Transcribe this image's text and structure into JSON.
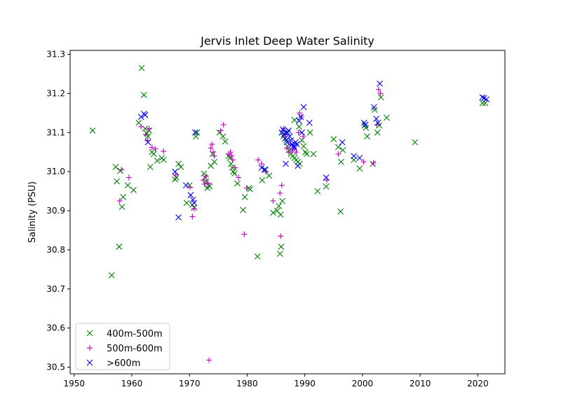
{
  "chart_data": {
    "type": "scatter",
    "title": "Jervis Inlet Deep Water Salinity",
    "xlabel": "",
    "ylabel": "Salinity (PSU)",
    "xlim": [
      1949.3,
      2024.7
    ],
    "ylim": [
      30.483,
      31.31
    ],
    "xticks": [
      1950,
      1960,
      1970,
      1980,
      1990,
      2000,
      2010,
      2020
    ],
    "yticks": [
      30.5,
      30.6,
      30.7,
      30.8,
      30.9,
      31.0,
      31.1,
      31.2,
      31.3
    ],
    "grid": false,
    "legend_position": "lower-left",
    "series": [
      {
        "name": "400m-500m",
        "marker": "x",
        "color": "#008000",
        "points": [
          [
            1953.2,
            31.105
          ],
          [
            1956.5,
            30.735
          ],
          [
            1957.2,
            31.012
          ],
          [
            1957.4,
            30.975
          ],
          [
            1957.8,
            30.808
          ],
          [
            1958.0,
            31.002
          ],
          [
            1958.3,
            30.91
          ],
          [
            1958.5,
            30.935
          ],
          [
            1959.3,
            30.965
          ],
          [
            1960.3,
            30.953
          ],
          [
            1961.2,
            31.125
          ],
          [
            1961.7,
            31.265
          ],
          [
            1962.1,
            31.196
          ],
          [
            1962.3,
            31.11
          ],
          [
            1962.6,
            31.098
          ],
          [
            1962.8,
            31.09
          ],
          [
            1963.0,
            31.105
          ],
          [
            1963.2,
            31.012
          ],
          [
            1963.5,
            31.05
          ],
          [
            1963.8,
            31.045
          ],
          [
            1964.4,
            31.028
          ],
          [
            1965.2,
            31.035
          ],
          [
            1965.5,
            31.03
          ],
          [
            1967.5,
            30.98
          ],
          [
            1967.7,
            30.985
          ],
          [
            1968.1,
            31.02
          ],
          [
            1968.5,
            31.012
          ],
          [
            1969.5,
            30.92
          ],
          [
            1970.0,
            30.965
          ],
          [
            1970.5,
            30.915
          ],
          [
            1970.8,
            30.908
          ],
          [
            1971.1,
            31.09
          ],
          [
            1971.3,
            31.1
          ],
          [
            1972.5,
            30.995
          ],
          [
            1972.7,
            30.985
          ],
          [
            1972.9,
            30.975
          ],
          [
            1973.1,
            30.958
          ],
          [
            1973.3,
            30.965
          ],
          [
            1973.5,
            30.962
          ],
          [
            1973.7,
            31.015
          ],
          [
            1974.0,
            31.045
          ],
          [
            1974.3,
            31.025
          ],
          [
            1975.2,
            31.1
          ],
          [
            1975.8,
            31.09
          ],
          [
            1976.2,
            31.077
          ],
          [
            1976.8,
            31.04
          ],
          [
            1977.0,
            31.035
          ],
          [
            1977.2,
            31.02
          ],
          [
            1977.4,
            31.01
          ],
          [
            1977.6,
            31.0
          ],
          [
            1977.8,
            30.995
          ],
          [
            1978.3,
            30.97
          ],
          [
            1979.3,
            30.902
          ],
          [
            1979.6,
            30.935
          ],
          [
            1980.3,
            30.958
          ],
          [
            1980.5,
            30.955
          ],
          [
            1981.8,
            30.783
          ],
          [
            1982.6,
            30.978
          ],
          [
            1983.2,
            31.005
          ],
          [
            1983.8,
            30.99
          ],
          [
            1984.5,
            30.895
          ],
          [
            1985.2,
            30.9
          ],
          [
            1985.5,
            30.912
          ],
          [
            1985.7,
            30.79
          ],
          [
            1985.8,
            30.89
          ],
          [
            1985.9,
            30.808
          ],
          [
            1986.1,
            30.925
          ],
          [
            1986.3,
            31.09
          ],
          [
            1986.5,
            31.1
          ],
          [
            1986.8,
            31.08
          ],
          [
            1987.0,
            31.065
          ],
          [
            1987.3,
            31.055
          ],
          [
            1987.6,
            31.045
          ],
          [
            1987.9,
            31.04
          ],
          [
            1988.2,
            31.035
          ],
          [
            1988.5,
            31.03
          ],
          [
            1988.8,
            31.025
          ],
          [
            1989.1,
            31.02
          ],
          [
            1988.2,
            31.132
          ],
          [
            1989.0,
            31.115
          ],
          [
            1989.5,
            31.08
          ],
          [
            1989.8,
            31.065
          ],
          [
            1990.1,
            31.05
          ],
          [
            1990.3,
            31.045
          ],
          [
            1990.9,
            31.1
          ],
          [
            1991.5,
            31.045
          ],
          [
            1992.2,
            30.95
          ],
          [
            1993.7,
            30.962
          ],
          [
            1995.0,
            31.083
          ],
          [
            1995.8,
            31.063
          ],
          [
            1996.2,
            30.898
          ],
          [
            1996.3,
            31.025
          ],
          [
            1996.6,
            31.055
          ],
          [
            1998.5,
            31.03
          ],
          [
            1999.5,
            31.008
          ],
          [
            2000.4,
            31.118
          ],
          [
            2000.6,
            31.112
          ],
          [
            2000.8,
            31.09
          ],
          [
            2001.8,
            31.02
          ],
          [
            2002.1,
            31.158
          ],
          [
            2002.6,
            31.1
          ],
          [
            2002.9,
            31.118
          ],
          [
            2003.2,
            31.19
          ],
          [
            2004.2,
            31.138
          ],
          [
            2009.1,
            31.075
          ],
          [
            2020.8,
            31.175
          ],
          [
            2021.3,
            31.175
          ]
        ]
      },
      {
        "name": "500m-600m",
        "marker": "+",
        "color": "#bf00bf",
        "points": [
          [
            1957.9,
            30.925
          ],
          [
            1958.2,
            31.005
          ],
          [
            1959.5,
            30.985
          ],
          [
            1961.6,
            31.115
          ],
          [
            1962.4,
            31.095
          ],
          [
            1962.7,
            31.08
          ],
          [
            1963.0,
            31.11
          ],
          [
            1963.5,
            31.062
          ],
          [
            1964.1,
            31.058
          ],
          [
            1965.5,
            31.052
          ],
          [
            1967.6,
            30.992
          ],
          [
            1970.1,
            30.96
          ],
          [
            1970.5,
            30.885
          ],
          [
            1970.8,
            30.905
          ],
          [
            1972.4,
            30.978
          ],
          [
            1972.6,
            30.968
          ],
          [
            1972.9,
            30.988
          ],
          [
            1973.2,
            30.97
          ],
          [
            1973.4,
            30.518
          ],
          [
            1973.7,
            31.06
          ],
          [
            1973.9,
            31.07
          ],
          [
            1974.1,
            31.05
          ],
          [
            1974.3,
            31.04
          ],
          [
            1975.4,
            31.105
          ],
          [
            1975.9,
            31.12
          ],
          [
            1976.8,
            31.045
          ],
          [
            1977.1,
            31.05
          ],
          [
            1977.3,
            31.04
          ],
          [
            1977.5,
            31.03
          ],
          [
            1977.9,
            31.01
          ],
          [
            1978.5,
            30.985
          ],
          [
            1979.5,
            30.84
          ],
          [
            1979.9,
            30.958
          ],
          [
            1981.9,
            31.03
          ],
          [
            1982.5,
            31.02
          ],
          [
            1983.2,
            31.0
          ],
          [
            1984.5,
            30.925
          ],
          [
            1985.7,
            30.945
          ],
          [
            1985.8,
            30.835
          ],
          [
            1986.0,
            30.965
          ],
          [
            1986.3,
            31.11
          ],
          [
            1986.6,
            31.095
          ],
          [
            1986.9,
            31.06
          ],
          [
            1987.2,
            31.05
          ],
          [
            1987.5,
            31.07
          ],
          [
            1987.8,
            31.055
          ],
          [
            1988.2,
            31.06
          ],
          [
            1988.5,
            31.05
          ],
          [
            1988.9,
            31.1
          ],
          [
            1989.1,
            31.15
          ],
          [
            1989.4,
            31.14
          ],
          [
            1989.7,
            31.09
          ],
          [
            1993.8,
            30.978
          ],
          [
            1995.8,
            31.045
          ],
          [
            2000.2,
            31.025
          ],
          [
            2001.9,
            31.022
          ],
          [
            2002.5,
            31.12
          ],
          [
            2002.8,
            31.21
          ],
          [
            2003.1,
            31.2
          ]
        ]
      },
      {
        "name": ">600m",
        "marker": "x",
        "color": "#0000ff",
        "points": [
          [
            1961.6,
            31.14
          ],
          [
            1962.1,
            31.148
          ],
          [
            1962.3,
            31.145
          ],
          [
            1962.8,
            31.075
          ],
          [
            1967.5,
            31.0
          ],
          [
            1968.1,
            30.883
          ],
          [
            1969.4,
            30.965
          ],
          [
            1970.2,
            30.94
          ],
          [
            1970.6,
            30.928
          ],
          [
            1970.8,
            30.92
          ],
          [
            1971.0,
            31.1
          ],
          [
            1982.5,
            31.01
          ],
          [
            1983.0,
            31.005
          ],
          [
            1986.0,
            31.1
          ],
          [
            1986.2,
            31.108
          ],
          [
            1986.4,
            31.095
          ],
          [
            1986.6,
            31.085
          ],
          [
            1986.7,
            31.02
          ],
          [
            1986.9,
            31.075
          ],
          [
            1987.0,
            31.1
          ],
          [
            1987.2,
            31.105
          ],
          [
            1987.4,
            31.09
          ],
          [
            1987.6,
            31.08
          ],
          [
            1987.8,
            31.07
          ],
          [
            1988.0,
            31.065
          ],
          [
            1988.2,
            31.06
          ],
          [
            1988.4,
            31.075
          ],
          [
            1988.6,
            31.07
          ],
          [
            1988.8,
            31.015
          ],
          [
            1989.0,
            31.13
          ],
          [
            1989.3,
            31.14
          ],
          [
            1989.5,
            31.1
          ],
          [
            1989.8,
            31.165
          ],
          [
            1990.8,
            31.125
          ],
          [
            1993.7,
            30.985
          ],
          [
            1996.5,
            31.075
          ],
          [
            1998.5,
            31.04
          ],
          [
            1999.5,
            31.035
          ],
          [
            2000.3,
            31.125
          ],
          [
            2000.5,
            31.12
          ],
          [
            2002.0,
            31.165
          ],
          [
            2002.4,
            31.135
          ],
          [
            2002.7,
            31.125
          ],
          [
            2003.0,
            31.225
          ],
          [
            2020.8,
            31.19
          ],
          [
            2021.1,
            31.188
          ],
          [
            2021.5,
            31.185
          ]
        ]
      }
    ]
  }
}
